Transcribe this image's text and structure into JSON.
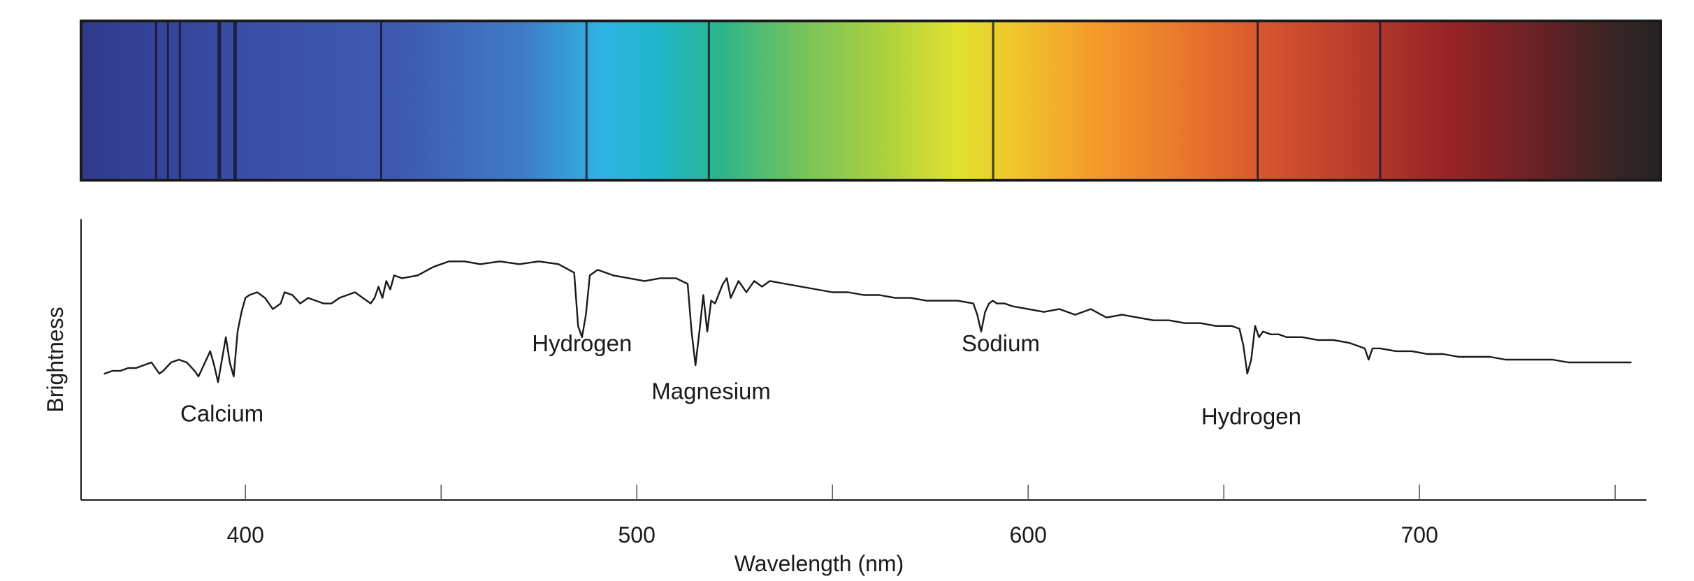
{
  "chart_data": {
    "type": "line",
    "title": "",
    "xlabel": "Wavelength (nm)",
    "ylabel": "Brightness",
    "xlim": [
      358,
      758
    ],
    "ylim": [
      0,
      100
    ],
    "grid": false,
    "legend": "none",
    "x_ticks": [
      400,
      450,
      500,
      550,
      600,
      650,
      700,
      750
    ],
    "x_tick_labels": [
      "400",
      "",
      "500",
      "",
      "600",
      "",
      "700",
      ""
    ],
    "spectrum_strip": {
      "gradient": [
        {
          "nm": 358,
          "color": "#2f3a8c"
        },
        {
          "nm": 400,
          "color": "#3a4ea6"
        },
        {
          "nm": 440,
          "color": "#3e5bb0"
        },
        {
          "nm": 470,
          "color": "#3f7cc6"
        },
        {
          "nm": 490,
          "color": "#2fb4e3"
        },
        {
          "nm": 505,
          "color": "#1fb7c9"
        },
        {
          "nm": 520,
          "color": "#2cb58a"
        },
        {
          "nm": 540,
          "color": "#74c35c"
        },
        {
          "nm": 560,
          "color": "#a8d03e"
        },
        {
          "nm": 580,
          "color": "#e0e22f"
        },
        {
          "nm": 595,
          "color": "#f0c42b"
        },
        {
          "nm": 615,
          "color": "#f39a2a"
        },
        {
          "nm": 640,
          "color": "#e8732c"
        },
        {
          "nm": 660,
          "color": "#d5522d"
        },
        {
          "nm": 685,
          "color": "#b23829"
        },
        {
          "nm": 705,
          "color": "#962325"
        },
        {
          "nm": 725,
          "color": "#6e2226"
        },
        {
          "nm": 745,
          "color": "#3a2425"
        },
        {
          "nm": 758,
          "color": "#242323"
        }
      ],
      "absorption_lines_nm": [
        377,
        380,
        383,
        393,
        397,
        434,
        486,
        517,
        589,
        656,
        687
      ]
    },
    "series": [
      {
        "x": [
          364,
          366,
          368,
          370,
          372,
          374,
          376,
          378,
          379,
          381,
          383,
          385,
          387,
          388,
          389,
          390,
          391,
          392,
          393,
          394,
          395,
          396,
          397,
          398,
          399,
          400,
          401,
          403,
          405,
          407,
          409,
          410,
          412,
          414,
          416,
          418,
          420,
          422,
          424,
          426,
          428,
          430,
          432,
          433,
          434,
          435,
          436,
          437,
          438,
          440,
          444,
          448,
          452,
          456,
          460,
          465,
          470,
          475,
          480,
          484,
          485,
          486,
          487,
          488,
          490,
          494,
          498,
          502,
          506,
          510,
          513,
          514,
          515,
          516,
          517,
          518,
          519,
          520,
          522,
          523,
          524,
          526,
          528,
          530,
          532,
          534,
          538,
          542,
          546,
          550,
          554,
          558,
          562,
          566,
          570,
          574,
          578,
          582,
          586,
          587,
          588,
          589,
          590,
          591,
          592,
          594,
          596,
          600,
          604,
          608,
          612,
          616,
          620,
          624,
          628,
          632,
          636,
          640,
          644,
          648,
          652,
          654,
          655,
          656,
          657,
          658,
          659,
          660,
          662,
          664,
          666,
          670,
          674,
          678,
          682,
          686,
          687,
          688,
          690,
          694,
          698,
          702,
          706,
          710,
          714,
          718,
          722,
          726,
          730,
          734,
          738,
          742,
          746,
          750,
          754
        ],
        "y": [
          45,
          46,
          46,
          47,
          47,
          48,
          49,
          45,
          46,
          49,
          50,
          49,
          46,
          44,
          47,
          50,
          53,
          48,
          42,
          50,
          58,
          49,
          44,
          60,
          67,
          72,
          73,
          74,
          72,
          68,
          70,
          74,
          73,
          70,
          72,
          71,
          70,
          70,
          72,
          73,
          74,
          72,
          70,
          72,
          76,
          72,
          78,
          75,
          80,
          79,
          80,
          83,
          85,
          85,
          84,
          85,
          84,
          85,
          84,
          81,
          62,
          58,
          66,
          80,
          82,
          80,
          79,
          78,
          79,
          79,
          77,
          60,
          48,
          60,
          73,
          60,
          71,
          70,
          77,
          79,
          72,
          78,
          74,
          78,
          76,
          78,
          77,
          76,
          75,
          74,
          74,
          73,
          73,
          72,
          72,
          71,
          71,
          71,
          70,
          66,
          60,
          67,
          70,
          71,
          70,
          70,
          69,
          68,
          67,
          68,
          66,
          68,
          65,
          66,
          65,
          64,
          64,
          63,
          63,
          62,
          62,
          61,
          55,
          45,
          50,
          62,
          58,
          60,
          59,
          59,
          58,
          58,
          57,
          57,
          56,
          54,
          50,
          54,
          54,
          53,
          53,
          52,
          52,
          51,
          51,
          51,
          50,
          50,
          50,
          50,
          49,
          49,
          49,
          49,
          49
        ]
      }
    ],
    "annotations": [
      {
        "text": "Calcium",
        "x": 394,
        "y": 28
      },
      {
        "text": "Hydrogen",
        "x": 486,
        "y": 53
      },
      {
        "text": "Magnesium",
        "x": 519,
        "y": 36
      },
      {
        "text": "Sodium",
        "x": 593,
        "y": 53
      },
      {
        "text": "Hydrogen",
        "x": 657,
        "y": 27
      }
    ]
  }
}
